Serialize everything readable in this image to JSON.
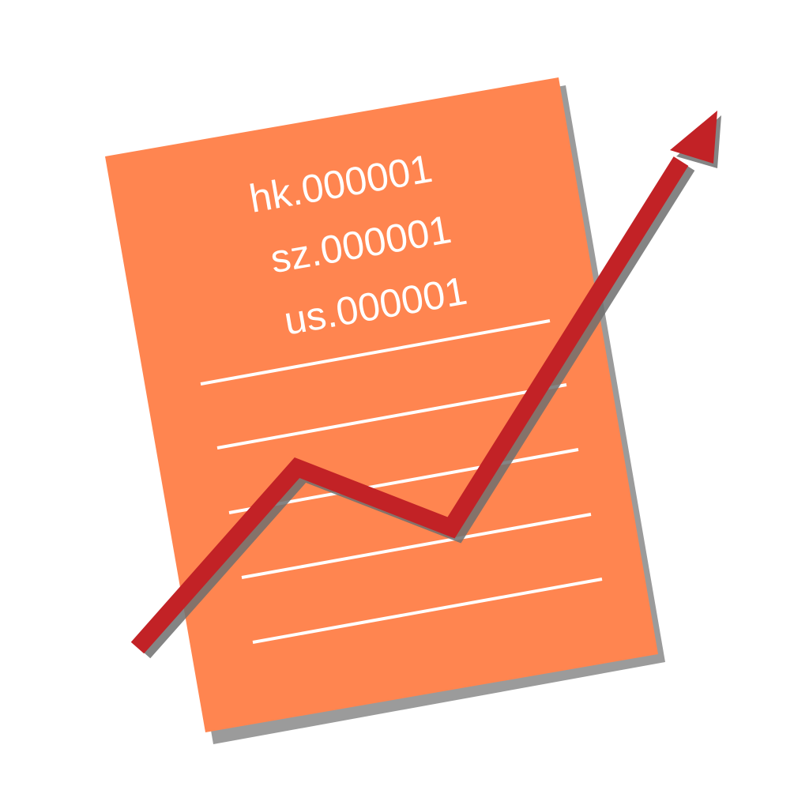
{
  "icon": {
    "document_color": "#FF8550",
    "document_shadow_color": "#8A8A8A",
    "rule_line_color": "#FFFFFF",
    "arrow_color": "#C22226",
    "arrow_shadow_color": "#6E6E6E",
    "tickers": [
      "hk.000001",
      "sz.000001",
      "us.000001"
    ],
    "trend_direction": "up"
  }
}
